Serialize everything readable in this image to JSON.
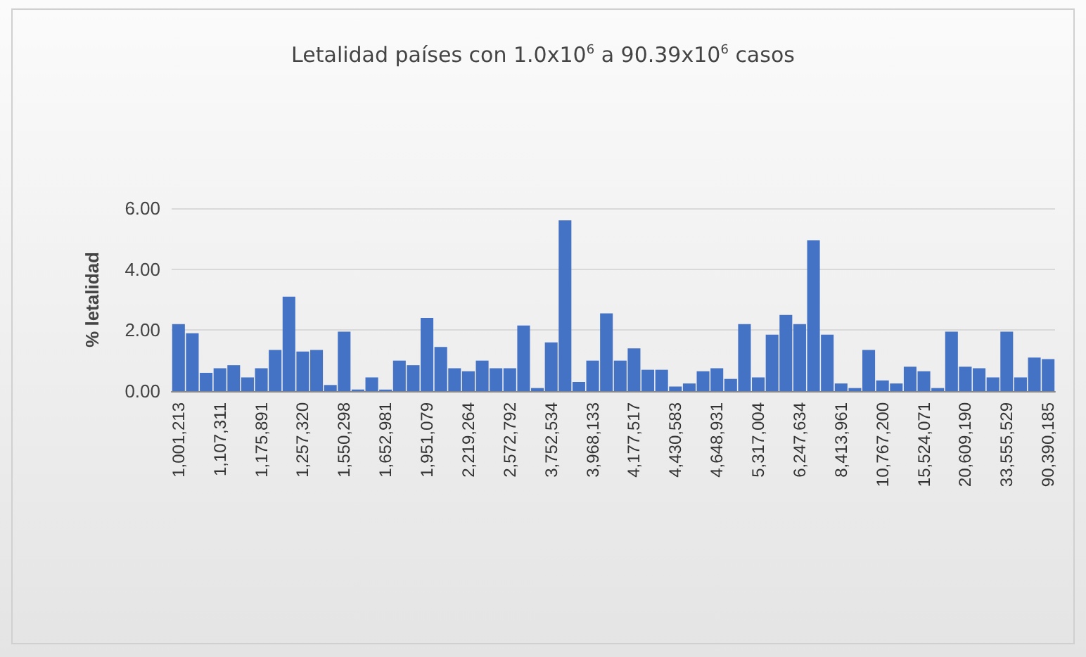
{
  "chart_data": {
    "type": "bar",
    "title": "Letalidad países con 1.0x10$^{6}$ a 90.39x10$^{6}$ casos",
    "ylabel": "% letalidad",
    "categories": [
      "1,001,213",
      null,
      null,
      "1,107,311",
      null,
      null,
      "1,175,891",
      null,
      null,
      "1,257,320",
      null,
      null,
      "1,550,298",
      null,
      null,
      "1,652,981",
      null,
      null,
      "1,951,079",
      null,
      null,
      "2,219,264",
      null,
      null,
      "2,572,792",
      null,
      null,
      "3,752,534",
      null,
      null,
      "3,968,133",
      null,
      null,
      "4,177,517",
      null,
      null,
      "4,430,583",
      null,
      null,
      "4,648,931",
      null,
      null,
      "5,317,004",
      null,
      null,
      "6,247,634",
      null,
      null,
      "8,413,961",
      null,
      null,
      "10,767,200",
      null,
      null,
      "15,524,071",
      null,
      null,
      "20,609,190",
      null,
      null,
      "33,555,529",
      null,
      null,
      "90,390,185"
    ],
    "values": [
      2.2,
      1.9,
      0.6,
      0.75,
      0.85,
      0.45,
      0.75,
      1.35,
      3.1,
      1.3,
      1.35,
      0.2,
      1.95,
      0.05,
      0.45,
      0.05,
      1.0,
      0.85,
      2.4,
      1.45,
      0.75,
      0.65,
      1.0,
      0.75,
      0.75,
      2.15,
      0.1,
      1.6,
      5.6,
      0.3,
      1.0,
      2.55,
      1.0,
      1.4,
      0.7,
      0.7,
      0.15,
      0.25,
      0.65,
      0.75,
      0.4,
      2.2,
      0.45,
      1.85,
      2.5,
      2.2,
      4.95,
      1.85,
      0.25,
      0.1,
      1.35,
      0.35,
      0.25,
      0.8,
      0.65,
      0.1,
      1.95,
      0.8,
      0.75,
      0.45,
      1.95,
      0.45,
      1.1,
      1.05
    ],
    "color": "#4472c4",
    "ylim": [
      0,
      6
    ],
    "yticks": [
      {
        "value": 0,
        "label": "0.00"
      },
      {
        "value": 2,
        "label": "2.00"
      },
      {
        "value": 4,
        "label": "4.00"
      },
      {
        "value": 6,
        "label": "6.00"
      }
    ],
    "grid": "y"
  }
}
